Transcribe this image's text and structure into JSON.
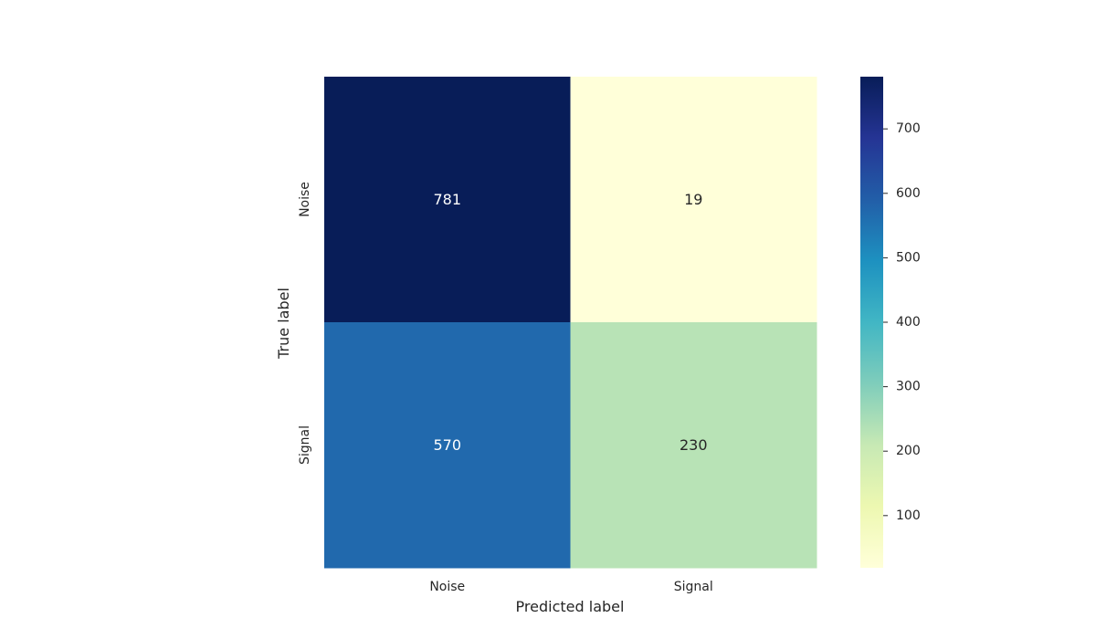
{
  "chart_data": {
    "type": "heatmap",
    "title": "",
    "xlabel": "Predicted label",
    "ylabel": "True label",
    "x_categories": [
      "Noise",
      "Signal"
    ],
    "y_categories": [
      "Noise",
      "Signal"
    ],
    "values": [
      [
        781,
        19
      ],
      [
        570,
        230
      ]
    ],
    "colormap": "YlGnBu",
    "colorbar": {
      "min": 19,
      "max": 781,
      "ticks": [
        100,
        200,
        300,
        400,
        500,
        600,
        700
      ]
    },
    "grid": false
  }
}
